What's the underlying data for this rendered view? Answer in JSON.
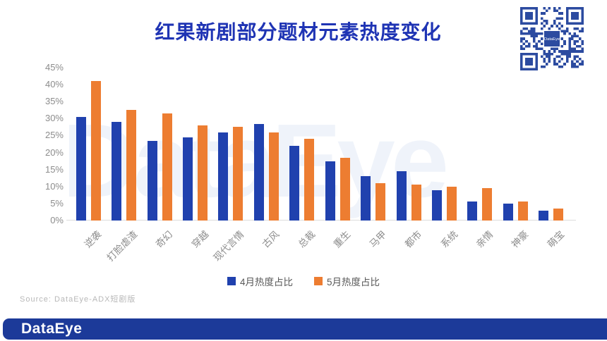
{
  "page": {
    "title": "红果新剧部分题材元素热度变化"
  },
  "colors": {
    "title": "#1F34B4",
    "april_blue": "#2041AE",
    "may_orange": "#ED7D31",
    "axis_text": "#8C8C8C",
    "baseline": "#DCDCDC",
    "legend_text": "#595959",
    "source_text": "#B8B8B8",
    "footer_bar": "#1C3A99",
    "qr_blue": "#2C4BA0",
    "watermark": "#EFF3FA"
  },
  "chart_data": {
    "type": "bar",
    "title": "红果新剧部分题材元素热度变化",
    "categories": [
      "逆袭",
      "打脸虐渣",
      "奇幻",
      "穿越",
      "现代言情",
      "古风",
      "总裁",
      "重生",
      "马甲",
      "都市",
      "系统",
      "亲情",
      "神豪",
      "萌宝"
    ],
    "series": [
      {
        "name": "4月热度占比",
        "color_key": "april_blue",
        "values": [
          30.5,
          29,
          23.5,
          24.5,
          26,
          28.5,
          22,
          17.5,
          13,
          14.5,
          9,
          5.5,
          5,
          3
        ]
      },
      {
        "name": "5月热度占比",
        "color_key": "may_orange",
        "values": [
          41,
          32.5,
          31.5,
          28,
          27.5,
          26,
          24,
          18.5,
          11,
          10.5,
          10,
          9.5,
          5.5,
          3.5
        ]
      }
    ],
    "ylim": [
      0,
      45
    ],
    "ytick_step": 5,
    "ytick_labels": [
      "0%",
      "5%",
      "10%",
      "15%",
      "20%",
      "25%",
      "30%",
      "35%",
      "40%",
      "45%"
    ],
    "grid": false,
    "legend_position": "bottom",
    "x_label_rotation_deg": -45
  },
  "watermark_text": "DataEye",
  "source_text": "Source: DataEye-ADX短剧版",
  "footer": {
    "brand": "DataEye"
  },
  "qr": {
    "center_label": "DataEye"
  }
}
